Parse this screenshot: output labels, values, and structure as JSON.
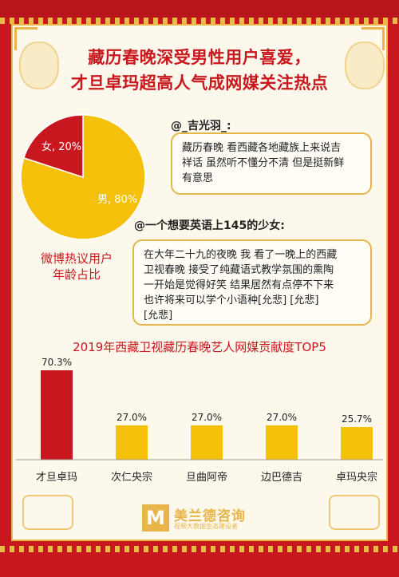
{
  "headline": {
    "line1": "藏历春晚深受男性用户喜爱，",
    "line2": "才旦卓玛超高人气成网媒关注热点"
  },
  "comments": [
    {
      "user": "@_吉光羽_:",
      "text": [
        "藏历春晚 看西藏各地藏族上来说吉",
        "祥话 虽然听不懂分不清 但是挺新鲜",
        "有意思"
      ]
    },
    {
      "user": "@一个想要英语上145的少女:",
      "text": [
        "在大年二十九的夜晚 我 看了一晚上的西藏",
        "卫视春晚 接受了纯藏语式教学氛围的熏陶",
        "一开始是觉得好笑 结果居然有点停不下来",
        "也许将来可以学个小语种[允悲] [允悲]",
        "[允悲]"
      ]
    }
  ],
  "pie_caption": [
    "微博热议用户",
    "年龄占比"
  ],
  "brand": {
    "mark": "M",
    "name": "美兰德咨询",
    "sub": "视频大数据生态建设者"
  },
  "colors": {
    "red": "#c8171e",
    "gold": "#f5c00a",
    "border_gold": "#e7b54a"
  },
  "chart_data": [
    {
      "type": "pie",
      "labels": [
        "男",
        "女"
      ],
      "values": [
        80,
        20
      ],
      "data_labels": [
        "男, 80%",
        "女, 20%"
      ],
      "colors": [
        "#f5c00a",
        "#c8171e"
      ],
      "title": ""
    },
    {
      "type": "bar",
      "title": "2019年西藏卫视藏历春晚艺人网媒贡献度TOP5",
      "categories": [
        "才旦卓玛",
        "次仁央宗",
        "旦曲阿帝",
        "边巴德吉",
        "卓玛央宗"
      ],
      "values": [
        70.3,
        27.0,
        27.0,
        27.0,
        25.7
      ],
      "data_labels": [
        "70.3%",
        "27.0%",
        "27.0%",
        "27.0%",
        "25.7%"
      ],
      "bar_colors": [
        "#c8171e",
        "#f5c00a",
        "#f5c00a",
        "#f5c00a",
        "#f5c00a"
      ]
    }
  ]
}
